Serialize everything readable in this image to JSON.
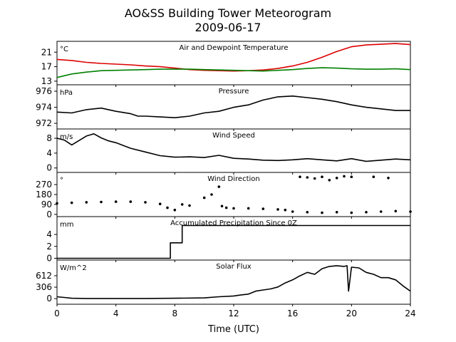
{
  "figure": {
    "title_line1": "AO&SS Building Tower Meteorogram",
    "title_line2": "2009-06-17",
    "xlabel": "Time (UTC)"
  },
  "chart_data": [
    {
      "id": "temp",
      "type": "line",
      "title": "Air and Dewpoint Temperature",
      "unit": "°C",
      "ylim": [
        12.0,
        24.0
      ],
      "yticks": [
        13,
        17,
        21
      ],
      "series": [
        {
          "color": "#dd0000",
          "x": [
            0,
            1,
            2,
            3,
            4,
            5,
            6,
            7,
            8,
            9,
            10,
            11,
            12,
            13,
            14,
            15,
            16,
            17,
            18,
            19,
            20,
            21,
            22,
            23,
            24
          ],
          "values": [
            19.0,
            18.7,
            18.2,
            17.9,
            17.7,
            17.5,
            17.2,
            17.0,
            16.6,
            16.2,
            16.0,
            15.9,
            15.8,
            15.9,
            16.1,
            16.5,
            17.2,
            18.2,
            19.6,
            21.2,
            22.5,
            23.0,
            23.2,
            23.4,
            23.1
          ]
        },
        {
          "color": "#008000",
          "x": [
            0,
            1,
            2,
            3,
            4,
            5,
            6,
            7,
            8,
            9,
            10,
            11,
            12,
            13,
            14,
            15,
            16,
            17,
            18,
            19,
            20,
            21,
            22,
            23,
            24
          ],
          "values": [
            14.0,
            15.0,
            15.5,
            15.9,
            16.0,
            16.1,
            16.2,
            16.3,
            16.3,
            16.3,
            16.2,
            16.1,
            16.0,
            15.9,
            15.8,
            16.0,
            16.2,
            16.5,
            16.7,
            16.6,
            16.4,
            16.3,
            16.3,
            16.4,
            16.2
          ]
        }
      ]
    },
    {
      "id": "pressure",
      "type": "line",
      "title": "Pressure",
      "unit": "hPa",
      "ylim": [
        971.3,
        976.8
      ],
      "yticks": [
        972,
        974,
        976
      ],
      "series": [
        {
          "color": "#000000",
          "x": [
            0,
            1,
            2,
            3,
            4,
            5,
            5.5,
            6,
            7,
            8,
            9,
            10,
            11,
            12,
            13,
            14,
            15,
            16,
            17,
            18,
            19,
            20,
            21,
            22,
            23,
            24
          ],
          "values": [
            973.4,
            973.3,
            973.7,
            973.9,
            973.5,
            973.2,
            972.9,
            972.9,
            972.8,
            972.7,
            972.9,
            973.3,
            973.5,
            974.0,
            974.3,
            974.9,
            975.3,
            975.4,
            975.2,
            975.0,
            974.7,
            974.3,
            974.0,
            973.8,
            973.6,
            973.6
          ]
        }
      ]
    },
    {
      "id": "wind_speed",
      "type": "line",
      "title": "Wind Speed",
      "unit": "m/s",
      "ylim": [
        -1.2,
        10.5
      ],
      "yticks": [
        0,
        4,
        8
      ],
      "series": [
        {
          "color": "#000000",
          "x": [
            0,
            0.5,
            1,
            1.5,
            2,
            2.5,
            3,
            3.5,
            4,
            5,
            6,
            7,
            8,
            9,
            10,
            11,
            12,
            13,
            14,
            15,
            16,
            17,
            18,
            19,
            20,
            21,
            22,
            23,
            24
          ],
          "values": [
            8.0,
            7.5,
            6.2,
            7.4,
            8.6,
            9.2,
            8.1,
            7.3,
            6.8,
            5.3,
            4.3,
            3.3,
            2.9,
            3.0,
            2.8,
            3.4,
            2.6,
            2.4,
            2.1,
            2.0,
            2.2,
            2.5,
            2.2,
            1.9,
            2.5,
            1.8,
            2.1,
            2.4,
            2.2
          ]
        }
      ]
    },
    {
      "id": "wind_dir",
      "type": "scatter",
      "title": "Wind Direction",
      "unit": "°",
      "ylim": [
        -20,
        380
      ],
      "yticks": [
        0,
        90,
        180,
        270
      ],
      "series": [
        {
          "color": "#000000",
          "x": [
            0,
            1,
            2,
            3,
            4,
            5,
            6,
            7,
            7.5,
            8,
            8.5,
            9,
            10,
            10.5,
            11,
            11.2,
            11.5,
            12,
            13,
            14,
            15,
            15.5,
            16,
            17,
            18,
            19,
            20,
            21,
            22,
            23,
            24
          ],
          "values": [
            100,
            105,
            110,
            112,
            115,
            115,
            110,
            95,
            60,
            40,
            90,
            80,
            150,
            180,
            250,
            75,
            60,
            55,
            55,
            50,
            45,
            40,
            25,
            20,
            15,
            20,
            15,
            20,
            25,
            30,
            25
          ]
        },
        {
          "color": "#000000",
          "x": [
            16.5,
            17,
            17.5,
            18,
            18.5,
            19,
            19.5,
            20,
            21.5,
            22.5
          ],
          "values": [
            340,
            335,
            325,
            340,
            310,
            330,
            345,
            340,
            340,
            330
          ]
        }
      ]
    },
    {
      "id": "precip",
      "type": "line",
      "title": "Accumulated Precipitation Since 0Z",
      "unit": "mm",
      "ylim": [
        -0.3,
        7.0
      ],
      "yticks": [
        0,
        2,
        4
      ],
      "series": [
        {
          "color": "#000000",
          "x": [
            0,
            7.7,
            7.7,
            8.3,
            8.3,
            8.5,
            8.5,
            24
          ],
          "values": [
            0,
            0,
            2.6,
            2.6,
            2.6,
            2.6,
            5.5,
            5.5
          ]
        }
      ]
    },
    {
      "id": "solar",
      "type": "line",
      "title": "Solar Flux",
      "unit": "W/m^2",
      "ylim": [
        -150,
        1030
      ],
      "yticks": [
        0,
        306,
        612
      ],
      "series": [
        {
          "color": "#000000",
          "x": [
            0,
            0.5,
            1,
            2,
            4,
            6,
            8,
            10,
            11,
            12,
            12.5,
            13,
            13.5,
            14,
            14.5,
            15,
            15.5,
            16,
            16.5,
            17,
            17.5,
            18,
            18.5,
            19,
            19.5,
            19.7,
            19.8,
            20,
            20.5,
            21,
            21.5,
            22,
            22.5,
            23,
            23.5,
            24
          ],
          "values": [
            50,
            30,
            10,
            5,
            5,
            5,
            10,
            20,
            50,
            70,
            100,
            120,
            200,
            230,
            260,
            310,
            420,
            500,
            610,
            700,
            650,
            800,
            860,
            880,
            860,
            880,
            200,
            840,
            820,
            700,
            650,
            560,
            560,
            500,
            340,
            200
          ]
        }
      ]
    }
  ],
  "xaxis": {
    "range": [
      0,
      24
    ],
    "ticks": [
      "0",
      "4",
      "8",
      "12",
      "16",
      "20",
      "24"
    ],
    "tick_values": [
      0,
      4,
      8,
      12,
      16,
      20,
      24
    ]
  }
}
